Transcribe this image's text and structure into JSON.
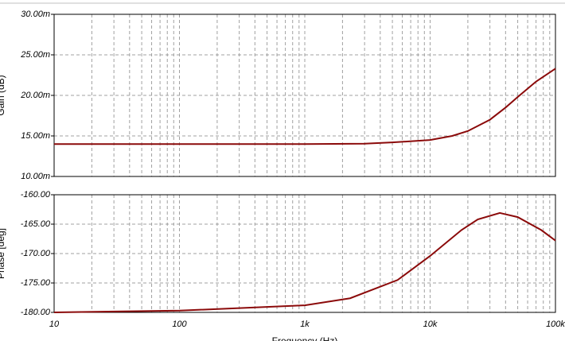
{
  "chart_data": [
    {
      "type": "line",
      "ylabel": "Gain (dB)",
      "xscale": "log",
      "grid": true,
      "color": "#8b0a0a",
      "xlim": [
        10,
        100000
      ],
      "xticks": [
        10,
        100,
        {
          "value": 1000,
          "label": "1k"
        },
        {
          "value": 10000,
          "label": "10k"
        },
        {
          "value": 100000,
          "label": "100k"
        }
      ],
      "ylim": [
        10,
        30
      ],
      "yticks": [
        {
          "value": 10,
          "label": "10.00m"
        },
        {
          "value": 15,
          "label": "15.00m"
        },
        {
          "value": 20,
          "label": "20.00m"
        },
        {
          "value": 25,
          "label": "25.00m"
        },
        {
          "value": 30,
          "label": "30.00m"
        }
      ],
      "x": [
        10,
        100,
        1000,
        3000,
        5000,
        10000,
        15000,
        20000,
        30000,
        40000,
        50000,
        70000,
        100000
      ],
      "values": [
        14,
        14,
        14,
        14.05,
        14.2,
        14.5,
        15.0,
        15.6,
        17.0,
        18.5,
        19.8,
        21.7,
        23.3
      ]
    },
    {
      "type": "line",
      "ylabel": "Phase [deg]",
      "xlabel": "Frequency (Hz)",
      "xscale": "log",
      "grid": true,
      "color": "#8b0a0a",
      "xlim": [
        10,
        100000
      ],
      "xticks": [
        10,
        100,
        {
          "value": 1000,
          "label": "1k"
        },
        {
          "value": 10000,
          "label": "10k"
        },
        {
          "value": 100000,
          "label": "100k"
        }
      ],
      "ylim": [
        -180,
        -160
      ],
      "yticks": [
        {
          "value": -180,
          "label": "-180.00"
        },
        {
          "value": -175,
          "label": "-175.00"
        },
        {
          "value": -170,
          "label": "-170.00"
        },
        {
          "value": -165,
          "label": "-165.00"
        },
        {
          "value": -160,
          "label": "-160.00"
        }
      ],
      "x": [
        10,
        100,
        1000,
        2300,
        5500,
        10000,
        17800,
        24000,
        36000,
        50000,
        77000,
        100000
      ],
      "values": [
        -180,
        -179.7,
        -178.8,
        -177.6,
        -174.5,
        -170.4,
        -166,
        -164.2,
        -163.1,
        -163.8,
        -166,
        -167.8
      ]
    }
  ]
}
